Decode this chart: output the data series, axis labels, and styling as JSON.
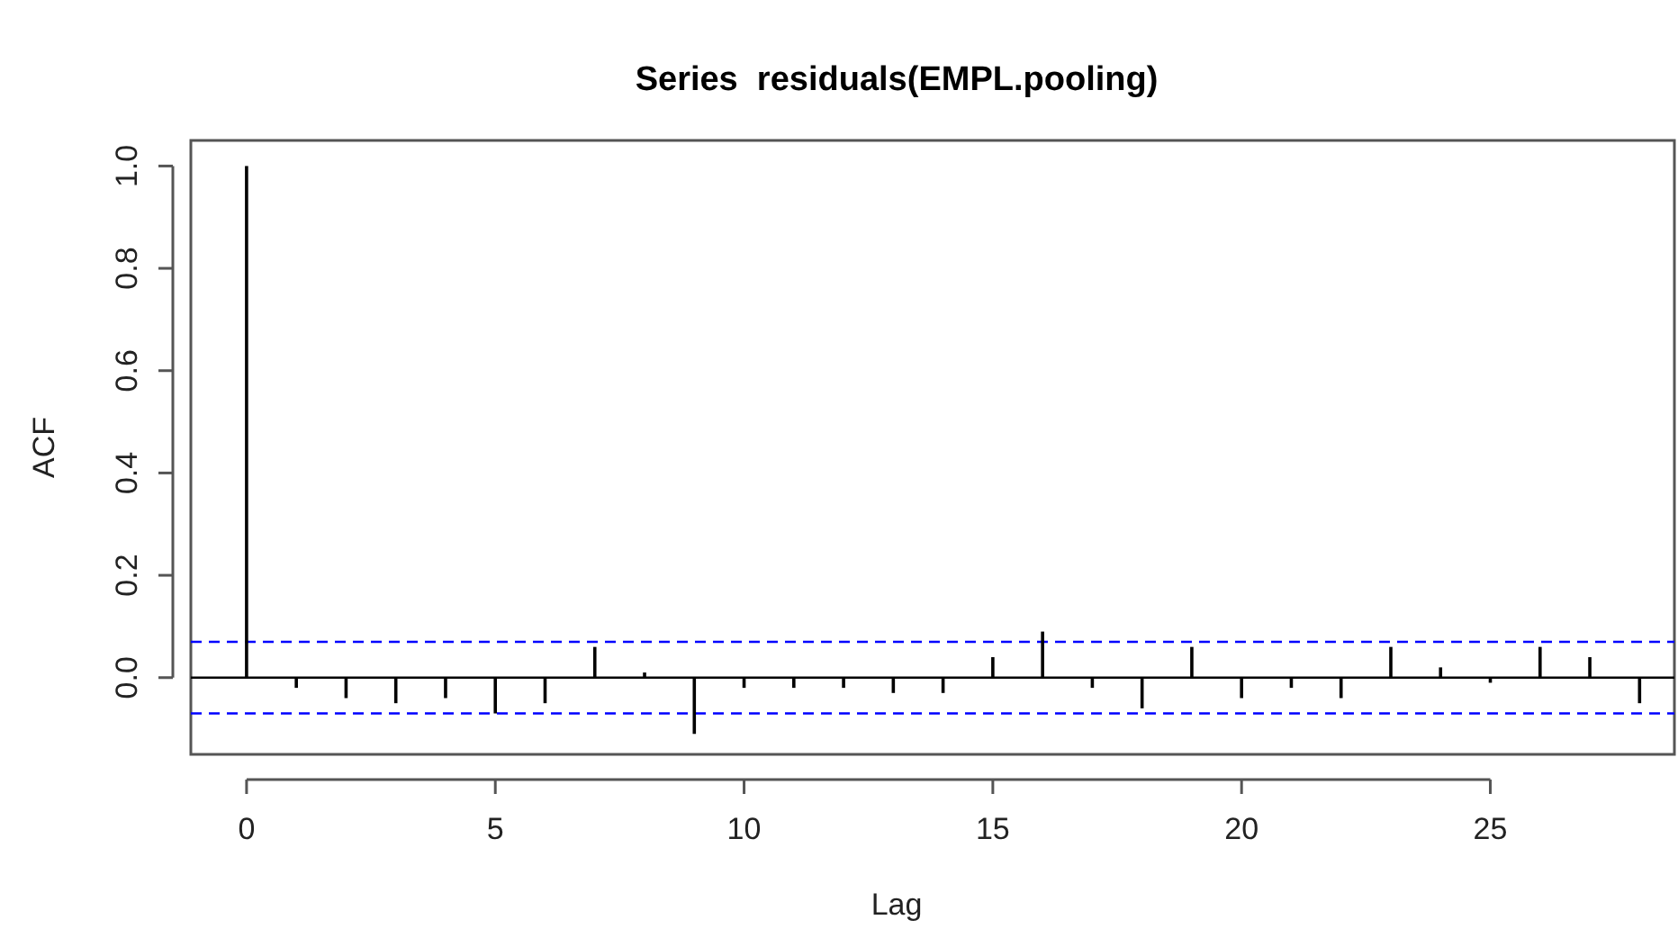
{
  "chart_data": {
    "type": "bar",
    "title": "Series  residuals(EMPL.pooling)",
    "xlabel": "Lag",
    "ylabel": "ACF",
    "x": [
      0,
      1,
      2,
      3,
      4,
      5,
      6,
      7,
      8,
      9,
      10,
      11,
      12,
      13,
      14,
      15,
      16,
      17,
      18,
      19,
      20,
      21,
      22,
      23,
      24,
      25,
      26,
      27,
      28
    ],
    "values": [
      1,
      -0.02,
      -0.04,
      -0.05,
      -0.04,
      -0.07,
      -0.05,
      0.06,
      0.01,
      -0.11,
      -0.02,
      -0.02,
      -0.02,
      -0.03,
      -0.03,
      0.04,
      0.09,
      -0.02,
      -0.06,
      0.06,
      -0.04,
      -0.02,
      -0.04,
      0.06,
      0.02,
      -0.01,
      0.06,
      0.04,
      -0.05
    ],
    "color": "#000000",
    "xlim": [
      -1.12,
      28.7
    ],
    "ylim": [
      -0.15,
      1.05
    ],
    "xticks": [
      0,
      5,
      10,
      15,
      20,
      25
    ],
    "yticks": [
      {
        "value": 0,
        "label": "0.0"
      },
      {
        "value": 0.2,
        "label": "0.2"
      },
      {
        "value": 0.4,
        "label": "0.4"
      },
      {
        "value": 0.6,
        "label": "0.6"
      },
      {
        "value": 0.8,
        "label": "0.8"
      },
      {
        "value": 1,
        "label": "1.0"
      }
    ],
    "ref_lines": [
      {
        "axis": "y",
        "value": 0,
        "color": "#000000",
        "line_style": "solid"
      },
      {
        "axis": "y",
        "value": 0.07,
        "color": "#0000ff",
        "line_style": "dashed"
      },
      {
        "axis": "y",
        "value": -0.07,
        "color": "#0000ff",
        "line_style": "dashed"
      }
    ],
    "grid": false
  }
}
